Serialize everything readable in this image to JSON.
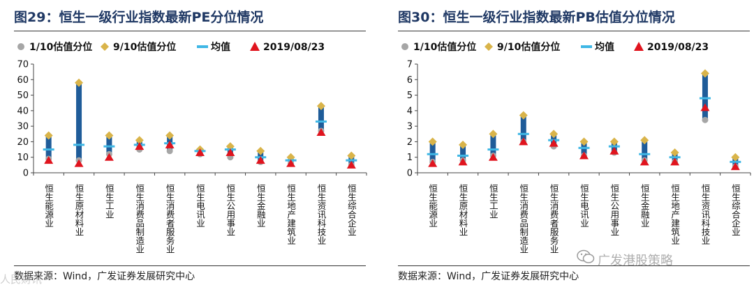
{
  "charts": [
    {
      "fig_title": "图29：恒生一级行业指数最新PE分位情况",
      "source": "数据来源：Wind，广发证券发展研究中心"
    },
    {
      "fig_title": "图30：恒生一级行业指数最新PB估值分位情况",
      "source": "数据来源：Wind，广发证券发展研究中心"
    }
  ],
  "watermark": "广发港股策略",
  "watermark_left": "人民财讯",
  "colors": {
    "bar": "#1f5c99",
    "p10": "#a6a6a6",
    "p90": "#d9b44a",
    "mean": "#3fb7e5",
    "latest": "#e0141e",
    "title": "#1f3864"
  },
  "chart_data": [
    {
      "type": "range-bar",
      "title": "",
      "xlabel": "",
      "ylabel": "",
      "ylim": [
        0,
        70
      ],
      "yticks": [
        0,
        10,
        20,
        30,
        40,
        50,
        60,
        70
      ],
      "legend": [
        "1/10估值分位",
        "9/10估值分位",
        "均值",
        "2019/08/23"
      ],
      "legend_position": "top",
      "grid": false,
      "categories": [
        "恒生能源业",
        "恒生原材料业",
        "恒生工业",
        "恒生消费品制造业",
        "恒生消费者服务业",
        "恒生电讯业",
        "恒生公用事业",
        "恒生金融业",
        "恒生地产建筑业",
        "恒生资讯科技业",
        "恒生综合企业"
      ],
      "series": [
        {
          "name": "1/10估值分位",
          "marker": "circle",
          "values": [
            9,
            8,
            12,
            15,
            14,
            12,
            10,
            7,
            6,
            27,
            5
          ]
        },
        {
          "name": "9/10估值分位",
          "marker": "diamond",
          "values": [
            24,
            58,
            24,
            21,
            24,
            15,
            17,
            14,
            10,
            43,
            11
          ]
        },
        {
          "name": "均值",
          "marker": "dash",
          "values": [
            15,
            18,
            17,
            18,
            19,
            14,
            15,
            10,
            8,
            33,
            8
          ]
        },
        {
          "name": "2019/08/23",
          "marker": "triangle",
          "values": [
            8,
            6,
            10,
            17,
            18,
            13,
            13,
            8,
            6,
            26,
            5
          ]
        }
      ]
    },
    {
      "type": "range-bar",
      "title": "",
      "xlabel": "",
      "ylabel": "",
      "ylim": [
        0,
        7
      ],
      "yticks": [
        0,
        1,
        2,
        3,
        4,
        5,
        6,
        7
      ],
      "legend": [
        "1/10估值分位",
        "9/10估值分位",
        "均值",
        "2019/08/23"
      ],
      "legend_position": "top",
      "grid": false,
      "categories": [
        "恒生能源业",
        "恒生原材料业",
        "恒生工业",
        "恒生消费品制造业",
        "恒生消费者服务业",
        "恒生电讯业",
        "恒生公用事业",
        "恒生金融业",
        "恒生地产建筑业",
        "恒生资讯科技业",
        "恒生综合企业"
      ],
      "series": [
        {
          "name": "1/10估值分位",
          "marker": "circle",
          "values": [
            0.7,
            0.8,
            1.1,
            2.0,
            1.7,
            1.1,
            1.3,
            0.8,
            0.7,
            3.4,
            0.4
          ]
        },
        {
          "name": "9/10估值分位",
          "marker": "diamond",
          "values": [
            2.0,
            1.8,
            2.5,
            3.7,
            2.5,
            2.0,
            2.0,
            2.1,
            1.3,
            6.4,
            1.0
          ]
        },
        {
          "name": "均值",
          "marker": "dash",
          "values": [
            1.2,
            1.1,
            1.5,
            2.5,
            2.1,
            1.6,
            1.7,
            1.2,
            1.0,
            4.8,
            0.7
          ]
        },
        {
          "name": "2019/08/23",
          "marker": "triangle",
          "values": [
            0.6,
            0.7,
            1.0,
            2.0,
            1.9,
            1.1,
            1.4,
            0.7,
            0.7,
            4.2,
            0.4
          ]
        }
      ]
    }
  ]
}
